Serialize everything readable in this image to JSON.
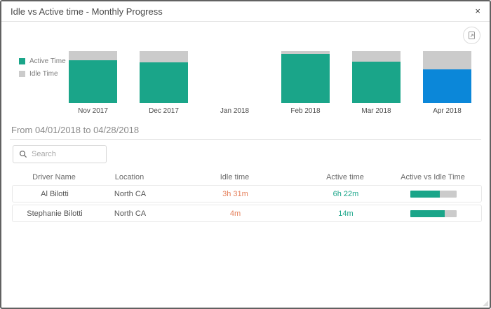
{
  "dialog": {
    "title": "Idle vs Active time - Monthly Progress",
    "close_glyph": "×"
  },
  "toolbar": {
    "export_tooltip": "export-chart"
  },
  "colors": {
    "active_teal": "#1aa589",
    "selected_blue": "#0b87d9",
    "idle_gray": "#cbcbcb",
    "idle_text_orange": "#e5815c"
  },
  "chart_data": {
    "type": "bar",
    "subtype": "stacked-100pct",
    "legend_position": "left",
    "legend": [
      {
        "label": "Active Time",
        "color": "#1aa589"
      },
      {
        "label": "Idle Time",
        "color": "#cbcbcb"
      }
    ],
    "categories": [
      "Nov 2017",
      "Dec 2017",
      "Jan 2018",
      "Feb 2018",
      "Mar 2018",
      "Apr 2018"
    ],
    "series": [
      {
        "name": "Active Time",
        "values": [
          82,
          78,
          null,
          95,
          80,
          65
        ]
      },
      {
        "name": "Idle Time",
        "values": [
          18,
          22,
          null,
          5,
          20,
          35
        ]
      }
    ],
    "months": [
      {
        "label": "Nov 2017",
        "active_pct": 82,
        "idle_pct": 18,
        "has_data": true,
        "bar_color": "#1aa589",
        "selected": false
      },
      {
        "label": "Dec 2017",
        "active_pct": 78,
        "idle_pct": 22,
        "has_data": true,
        "bar_color": "#1aa589",
        "selected": false
      },
      {
        "label": "Jan 2018",
        "active_pct": 0,
        "idle_pct": 0,
        "has_data": false,
        "bar_color": null,
        "selected": false
      },
      {
        "label": "Feb 2018",
        "active_pct": 95,
        "idle_pct": 5,
        "has_data": true,
        "bar_color": "#1aa589",
        "selected": false
      },
      {
        "label": "Mar 2018",
        "active_pct": 80,
        "idle_pct": 20,
        "has_data": true,
        "bar_color": "#1aa589",
        "selected": false
      },
      {
        "label": "Apr 2018",
        "active_pct": 65,
        "idle_pct": 35,
        "has_data": true,
        "bar_color": "#0b87d9",
        "selected": true
      }
    ]
  },
  "period": {
    "text": "From 04/01/2018 to 04/28/2018"
  },
  "search": {
    "placeholder": "Search"
  },
  "table": {
    "headers": [
      "Driver Name",
      "Location",
      "Idle time",
      "Active time",
      "Active vs Idle Time"
    ],
    "rows": [
      {
        "driver": "Al Bilotti",
        "location": "North CA",
        "idle": "3h 31m",
        "active": "6h 22m",
        "active_pct": 64
      },
      {
        "driver": "Stephanie Bilotti",
        "location": "North CA",
        "idle": "4m",
        "active": "14m",
        "active_pct": 74
      }
    ]
  }
}
